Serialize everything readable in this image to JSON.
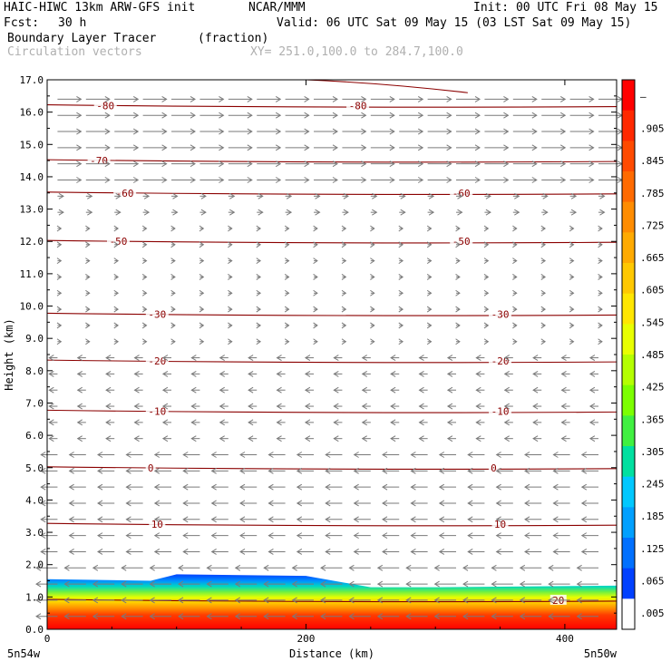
{
  "header": {
    "model": "HAIC-HIWC 13km ARW-GFS init",
    "org": "NCAR/MMM",
    "init": "Init: 00 UTC Fri 08 May 15",
    "fcst_label": "Fcst:",
    "fcst_value": "30 h",
    "valid": "Valid: 06 UTC Sat 09 May 15 (03 LST Sat 09 May 15)",
    "field": "Boundary Layer Tracer",
    "units": "(fraction)",
    "overlay": "Circulation vectors",
    "xy": "XY= 251.0,100.0 to 284.7,100.0"
  },
  "chart_data": {
    "type": "heatmap",
    "title": "Boundary Layer Tracer",
    "units": "(fraction)",
    "xlabel": "Distance (km)",
    "ylabel": "Height (km)",
    "xlim": [
      0,
      440
    ],
    "ylim": [
      0,
      17
    ],
    "x_ticks": [
      0,
      200,
      400
    ],
    "y_ticks": [
      "0.0",
      "1.0",
      "2.0",
      "3.0",
      "4.0",
      "5.0",
      "6.0",
      "7.0",
      "8.0",
      "9.0",
      "10.0",
      "11.0",
      "12.0",
      "13.0",
      "14.0",
      "15.0",
      "16.0",
      "17.0"
    ],
    "endpoint_left": "5n54w",
    "endpoint_right": "5n50w",
    "colorbar": {
      "labels": [
        "–",
        ".905",
        ".845",
        ".785",
        ".725",
        ".665",
        ".605",
        ".545",
        ".485",
        ".425",
        ".365",
        ".305",
        ".245",
        ".185",
        ".125",
        ".065",
        ".005"
      ],
      "colors": [
        "#ff0000",
        "#ff2800",
        "#ff4a00",
        "#ff6a00",
        "#ff8c00",
        "#ffaa00",
        "#ffc800",
        "#ffe600",
        "#e8ff00",
        "#b4ff00",
        "#7cff00",
        "#40f040",
        "#00e0a0",
        "#00c8ff",
        "#00a0ff",
        "#0070ff",
        "#0040ff",
        "#ffffff"
      ]
    },
    "tracer_top_km": [
      {
        "x": 0,
        "z": 1.55
      },
      {
        "x": 80,
        "z": 1.5
      },
      {
        "x": 100,
        "z": 1.7
      },
      {
        "x": 200,
        "z": 1.65
      },
      {
        "x": 250,
        "z": 1.3
      },
      {
        "x": 300,
        "z": 1.3
      },
      {
        "x": 440,
        "z": 1.35
      }
    ],
    "isotherms": [
      {
        "label": "-80",
        "z": 16.2
      },
      {
        "label": "-70",
        "z": 14.5
      },
      {
        "label": "-60",
        "z": 13.5
      },
      {
        "label": "-50",
        "z": 12.0
      },
      {
        "label": "-30",
        "z": 9.75
      },
      {
        "label": "-20",
        "z": 8.3
      },
      {
        "label": "-10",
        "z": 6.75
      },
      {
        "label": "0",
        "z": 5.0
      },
      {
        "label": "10",
        "z": 3.25
      },
      {
        "label": "20",
        "z": 0.9
      }
    ],
    "isotherm_label_positions": [
      {
        "label": "-80",
        "x": 240
      },
      {
        "label": "-80",
        "x": 45
      },
      {
        "label": "-70",
        "x": 40
      },
      {
        "label": "-60",
        "x": 60
      },
      {
        "label": "-60",
        "x": 320
      },
      {
        "label": "-50",
        "x": 55
      },
      {
        "label": "-50",
        "x": 320
      },
      {
        "label": "-30",
        "x": 85
      },
      {
        "label": "-30",
        "x": 350
      },
      {
        "label": "-20",
        "x": 85
      },
      {
        "label": "-20",
        "x": 350
      },
      {
        "label": "-10",
        "x": 85
      },
      {
        "label": "-10",
        "x": 350
      },
      {
        "label": "0",
        "x": 80
      },
      {
        "label": "0",
        "x": 345
      },
      {
        "label": "10",
        "x": 85
      },
      {
        "label": "10",
        "x": 350
      },
      {
        "label": "20",
        "x": 395
      }
    ],
    "wind_upper": "westerly",
    "wind_lower": "easterly",
    "grid": false,
    "legend": "right colorbar"
  }
}
